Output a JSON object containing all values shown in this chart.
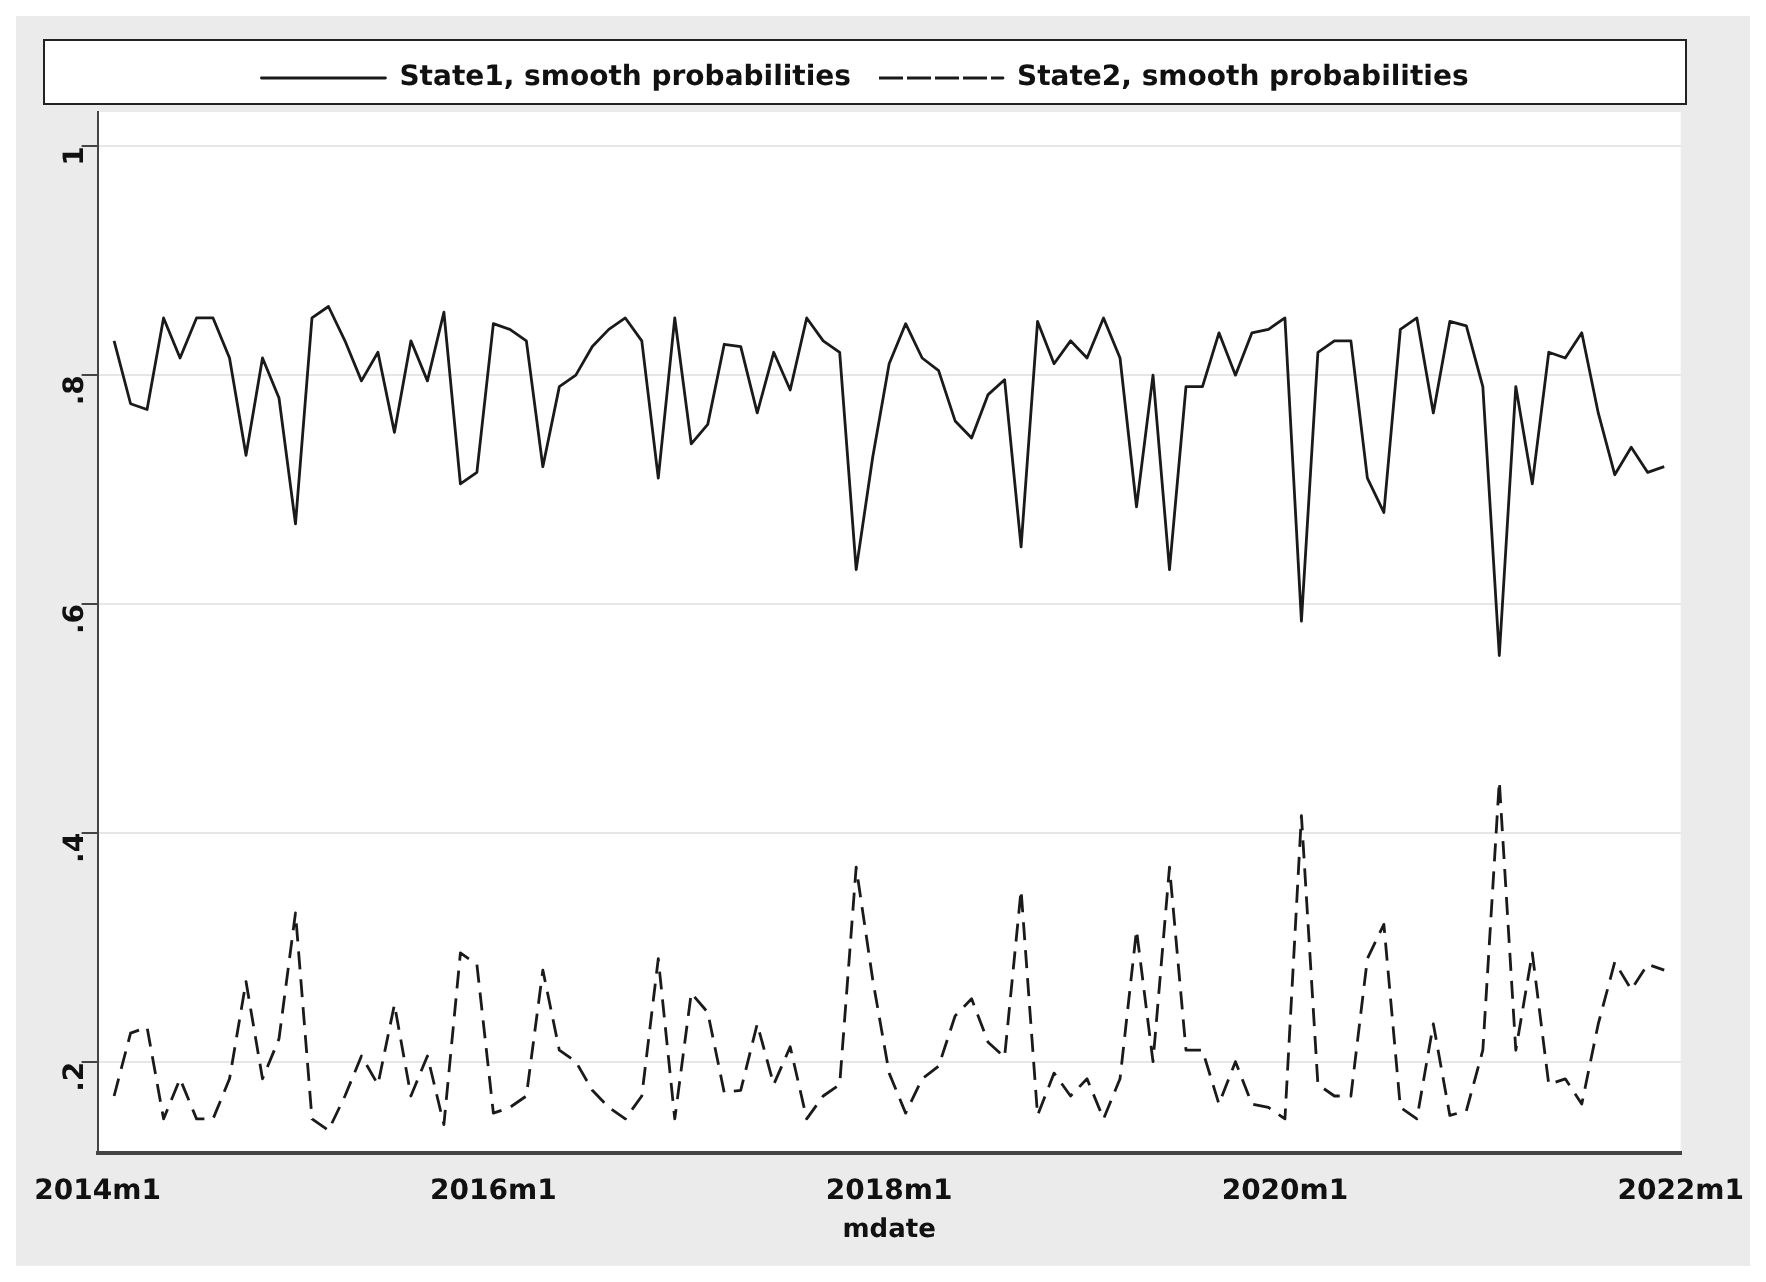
{
  "chart_data": {
    "type": "line",
    "xlabel": "mdate",
    "legend": "top",
    "grid": "y",
    "marker": "none",
    "xlim": [
      "2014-01",
      "2022-01"
    ],
    "xticks": [
      {
        "value": "2014-01",
        "label": "2014m1"
      },
      {
        "value": "2016-01",
        "label": "2016m1"
      },
      {
        "value": "2018-01",
        "label": "2018m1"
      },
      {
        "value": "2020-01",
        "label": "2020m1"
      },
      {
        "value": "2022-01",
        "label": "2022m1"
      }
    ],
    "ylim": [
      0.12,
      1.03
    ],
    "yticks": [
      {
        "value": 0.2,
        "label": ".2"
      },
      {
        "value": 0.4,
        "label": ".4"
      },
      {
        "value": 0.6,
        "label": ".6"
      },
      {
        "value": 0.8,
        "label": ".8"
      },
      1
    ],
    "x": [
      "2014-02",
      "2014-03",
      "2014-04",
      "2014-05",
      "2014-06",
      "2014-07",
      "2014-08",
      "2014-09",
      "2014-10",
      "2014-11",
      "2014-12",
      "2015-01",
      "2015-02",
      "2015-03",
      "2015-04",
      "2015-05",
      "2015-06",
      "2015-07",
      "2015-08",
      "2015-09",
      "2015-10",
      "2015-11",
      "2015-12",
      "2016-01",
      "2016-02",
      "2016-03",
      "2016-04",
      "2016-05",
      "2016-06",
      "2016-07",
      "2016-08",
      "2016-09",
      "2016-10",
      "2016-11",
      "2016-12",
      "2017-01",
      "2017-02",
      "2017-03",
      "2017-04",
      "2017-05",
      "2017-06",
      "2017-07",
      "2017-08",
      "2017-09",
      "2017-10",
      "2017-11",
      "2017-12",
      "2018-01",
      "2018-02",
      "2018-03",
      "2018-04",
      "2018-05",
      "2018-06",
      "2018-07",
      "2018-08",
      "2018-09",
      "2018-10",
      "2018-11",
      "2018-12",
      "2019-01",
      "2019-02",
      "2019-03",
      "2019-04",
      "2019-05",
      "2019-06",
      "2019-07",
      "2019-08",
      "2019-09",
      "2019-10",
      "2019-11",
      "2019-12",
      "2020-01",
      "2020-02",
      "2020-03",
      "2020-04",
      "2020-05",
      "2020-06",
      "2020-07",
      "2020-08",
      "2020-09",
      "2020-10",
      "2020-11",
      "2020-12",
      "2021-01",
      "2021-02",
      "2021-03",
      "2021-04",
      "2021-05",
      "2021-06",
      "2021-07",
      "2021-08",
      "2021-09",
      "2021-10",
      "2021-11",
      "2021-12"
    ],
    "series": [
      {
        "name": "State1, smooth probabilities",
        "color": "#1a1a1a",
        "line_style": "solid",
        "values": [
          0.83,
          0.775,
          0.77,
          0.85,
          0.815,
          0.85,
          0.85,
          0.815,
          0.73,
          0.815,
          0.78,
          0.67,
          0.85,
          0.86,
          0.83,
          0.795,
          0.82,
          0.75,
          0.83,
          0.795,
          0.855,
          0.705,
          0.715,
          0.845,
          0.84,
          0.83,
          0.72,
          0.79,
          0.8,
          0.825,
          0.84,
          0.85,
          0.83,
          0.71,
          0.85,
          0.74,
          0.757,
          0.827,
          0.825,
          0.767,
          0.82,
          0.787,
          0.85,
          0.83,
          0.82,
          0.63,
          0.728,
          0.81,
          0.845,
          0.815,
          0.804,
          0.76,
          0.745,
          0.783,
          0.796,
          0.65,
          0.847,
          0.81,
          0.83,
          0.815,
          0.85,
          0.815,
          0.685,
          0.8,
          0.63,
          0.79,
          0.79,
          0.837,
          0.8,
          0.837,
          0.84,
          0.85,
          0.585,
          0.82,
          0.83,
          0.83,
          0.71,
          0.68,
          0.84,
          0.85,
          0.767,
          0.847,
          0.843,
          0.79,
          0.555,
          0.79,
          0.705,
          0.82,
          0.815,
          0.837,
          0.767,
          0.713,
          0.737,
          0.715,
          0.72
        ]
      },
      {
        "name": "State2, smooth probabilities",
        "color": "#1a1a1a",
        "line_style": "dashed",
        "values": [
          0.17,
          0.225,
          0.23,
          0.15,
          0.185,
          0.15,
          0.15,
          0.185,
          0.27,
          0.185,
          0.22,
          0.33,
          0.15,
          0.14,
          0.17,
          0.205,
          0.18,
          0.25,
          0.17,
          0.205,
          0.145,
          0.295,
          0.285,
          0.155,
          0.16,
          0.17,
          0.28,
          0.21,
          0.2,
          0.175,
          0.16,
          0.15,
          0.17,
          0.29,
          0.15,
          0.26,
          0.243,
          0.173,
          0.175,
          0.233,
          0.18,
          0.213,
          0.15,
          0.17,
          0.18,
          0.37,
          0.272,
          0.19,
          0.155,
          0.185,
          0.196,
          0.24,
          0.255,
          0.217,
          0.204,
          0.35,
          0.153,
          0.19,
          0.17,
          0.185,
          0.15,
          0.185,
          0.315,
          0.2,
          0.37,
          0.21,
          0.21,
          0.163,
          0.2,
          0.163,
          0.16,
          0.15,
          0.415,
          0.18,
          0.17,
          0.17,
          0.29,
          0.32,
          0.16,
          0.15,
          0.233,
          0.153,
          0.157,
          0.21,
          0.445,
          0.21,
          0.295,
          0.18,
          0.185,
          0.163,
          0.233,
          0.287,
          0.263,
          0.285,
          0.28
        ]
      }
    ]
  }
}
